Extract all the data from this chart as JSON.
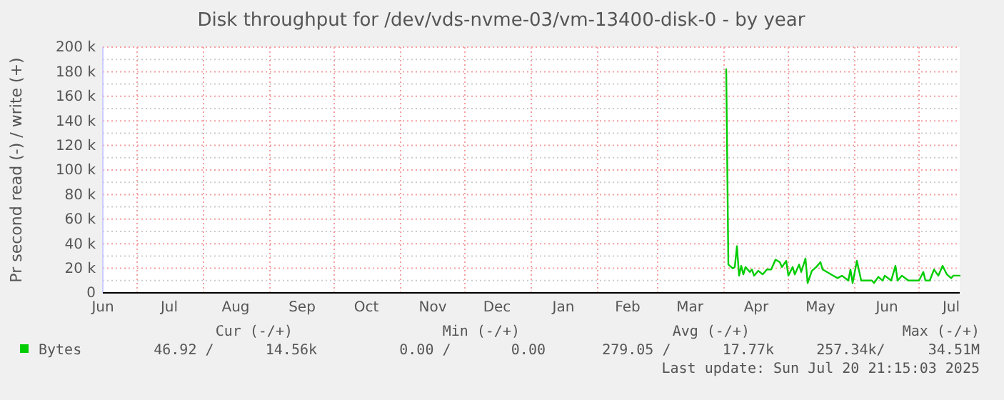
{
  "chart_data": {
    "type": "line",
    "title": "Disk throughput for /dev/vds-nvme-03/vm-13400-disk-0 - by year",
    "ylabel": "Pr second read (-) / write (+)",
    "xlim": [
      "2024-06-15",
      "2025-07-20"
    ],
    "xticks": [
      {
        "value": "2024-06-15",
        "label": "Jun"
      },
      {
        "value": "2024-07-01",
        "label": null
      },
      {
        "value": "2024-07-16",
        "label": "Jul"
      },
      {
        "value": "2024-08-01",
        "label": null
      },
      {
        "value": "2024-08-16",
        "label": "Aug"
      },
      {
        "value": "2024-09-01",
        "label": null
      },
      {
        "value": "2024-09-16",
        "label": "Sep"
      },
      {
        "value": "2024-10-01",
        "label": null
      },
      {
        "value": "2024-10-16",
        "label": "Oct"
      },
      {
        "value": "2024-11-01",
        "label": null
      },
      {
        "value": "2024-11-16",
        "label": "Nov"
      },
      {
        "value": "2024-12-01",
        "label": null
      },
      {
        "value": "2024-12-16",
        "label": "Dec"
      },
      {
        "value": "2025-01-01",
        "label": null
      },
      {
        "value": "2025-01-16",
        "label": "Jan"
      },
      {
        "value": "2025-02-01",
        "label": null
      },
      {
        "value": "2025-02-15",
        "label": "Feb"
      },
      {
        "value": "2025-03-01",
        "label": null
      },
      {
        "value": "2025-03-16",
        "label": "Mar"
      },
      {
        "value": "2025-04-01",
        "label": null
      },
      {
        "value": "2025-04-16",
        "label": "Apr"
      },
      {
        "value": "2025-05-01",
        "label": null
      },
      {
        "value": "2025-05-16",
        "label": "May"
      },
      {
        "value": "2025-06-01",
        "label": null
      },
      {
        "value": "2025-06-16",
        "label": "Jun"
      },
      {
        "value": "2025-07-01",
        "label": null
      },
      {
        "value": "2025-07-16",
        "label": "Jul"
      }
    ],
    "ylim": [
      0,
      200000
    ],
    "yticks": [
      {
        "value": 0,
        "label": "0"
      },
      {
        "value": 10000,
        "label": null
      },
      {
        "value": 20000,
        "label": "20 k"
      },
      {
        "value": 30000,
        "label": null
      },
      {
        "value": 40000,
        "label": "40 k"
      },
      {
        "value": 50000,
        "label": null
      },
      {
        "value": 60000,
        "label": "60 k"
      },
      {
        "value": 70000,
        "label": null
      },
      {
        "value": 80000,
        "label": "80 k"
      },
      {
        "value": 90000,
        "label": null
      },
      {
        "value": 100000,
        "label": "100 k"
      },
      {
        "value": 110000,
        "label": null
      },
      {
        "value": 120000,
        "label": "120 k"
      },
      {
        "value": 130000,
        "label": null
      },
      {
        "value": 140000,
        "label": "140 k"
      },
      {
        "value": 150000,
        "label": null
      },
      {
        "value": 160000,
        "label": "160 k"
      },
      {
        "value": 170000,
        "label": null
      },
      {
        "value": 180000,
        "label": "180 k"
      },
      {
        "value": 190000,
        "label": null
      },
      {
        "value": 200000,
        "label": "200 k"
      }
    ],
    "grid": true,
    "legend": "bottom",
    "marker": "none",
    "line_style": "solid",
    "series": [
      {
        "name": "Bytes",
        "color": "#00cc00",
        "x": [
          "2025-04-02",
          "2025-04-03",
          "2025-04-05",
          "2025-04-06",
          "2025-04-07",
          "2025-04-08",
          "2025-04-09",
          "2025-04-10",
          "2025-04-11",
          "2025-04-13",
          "2025-04-14",
          "2025-04-15",
          "2025-04-17",
          "2025-04-19",
          "2025-04-21",
          "2025-04-23",
          "2025-04-25",
          "2025-04-27",
          "2025-04-28",
          "2025-04-30",
          "2025-05-01",
          "2025-05-03",
          "2025-05-04",
          "2025-05-06",
          "2025-05-07",
          "2025-05-09",
          "2025-05-10",
          "2025-05-12",
          "2025-05-14",
          "2025-05-16",
          "2025-05-17",
          "2025-05-20",
          "2025-05-22",
          "2025-05-24",
          "2025-05-26",
          "2025-05-29",
          "2025-05-30",
          "2025-05-31",
          "2025-06-02",
          "2025-06-04",
          "2025-06-06",
          "2025-06-09",
          "2025-06-10",
          "2025-06-12",
          "2025-06-14",
          "2025-06-15",
          "2025-06-18",
          "2025-06-20",
          "2025-06-21",
          "2025-06-23",
          "2025-06-26",
          "2025-06-28",
          "2025-07-01",
          "2025-07-03",
          "2025-07-04",
          "2025-07-06",
          "2025-07-08",
          "2025-07-10",
          "2025-07-12",
          "2025-07-14",
          "2025-07-16",
          "2025-07-17",
          "2025-07-20"
        ],
        "values": [
          182000,
          23000,
          20000,
          21000,
          38000,
          14000,
          22000,
          15000,
          21000,
          17000,
          19000,
          14000,
          18000,
          15000,
          19000,
          19000,
          27000,
          25000,
          21000,
          26000,
          14000,
          21000,
          15000,
          23000,
          17000,
          28000,
          8000,
          18000,
          21000,
          25000,
          19000,
          16000,
          14000,
          12000,
          14000,
          10000,
          19000,
          8000,
          26000,
          10000,
          10000,
          10000,
          8000,
          13000,
          10000,
          14000,
          10000,
          22000,
          10000,
          14000,
          10000,
          10000,
          10000,
          17000,
          10000,
          10000,
          19000,
          14000,
          22000,
          15000,
          12000,
          14000,
          14000
        ]
      }
    ],
    "annotations": [
      "Cur (-/+)",
      "Min (-/+)",
      "Avg (-/+)",
      "Max (-/+)",
      "46.92 /      14.56k",
      "0.00 /       0.00",
      "279.05 /      17.77k",
      "257.34k/     34.51M",
      "Last update: Sun Jul 20 21:15:03 2025"
    ]
  }
}
